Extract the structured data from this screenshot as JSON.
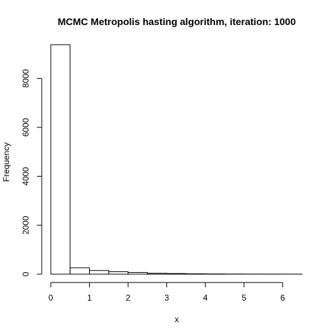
{
  "chart_data": {
    "type": "bar",
    "title": "MCMC Metropolis hasting algorithm, iteration: 1000",
    "xlabel": "x",
    "ylabel": "Frequency",
    "xlim": [
      0,
      6.5
    ],
    "ylim": [
      0,
      9500
    ],
    "x_ticks": [
      0,
      1,
      2,
      3,
      4,
      5,
      6
    ],
    "y_ticks": [
      0,
      2000,
      4000,
      6000,
      8000
    ],
    "bin_width": 0.5,
    "bins": [
      {
        "x0": 0.0,
        "x1": 0.5,
        "value": 9380
      },
      {
        "x0": 0.5,
        "x1": 1.0,
        "value": 260
      },
      {
        "x0": 1.0,
        "x1": 1.5,
        "value": 150
      },
      {
        "x0": 1.5,
        "x1": 2.0,
        "value": 100
      },
      {
        "x0": 2.0,
        "x1": 2.5,
        "value": 70
      },
      {
        "x0": 2.5,
        "x1": 3.0,
        "value": 35
      },
      {
        "x0": 3.0,
        "x1": 3.5,
        "value": 25
      },
      {
        "x0": 3.5,
        "x1": 4.0,
        "value": 15
      },
      {
        "x0": 4.0,
        "x1": 4.5,
        "value": 10
      },
      {
        "x0": 4.5,
        "x1": 5.0,
        "value": 6
      },
      {
        "x0": 5.0,
        "x1": 5.5,
        "value": 4
      },
      {
        "x0": 5.5,
        "x1": 6.0,
        "value": 3
      },
      {
        "x0": 6.0,
        "x1": 6.5,
        "value": 2
      }
    ],
    "grid": false,
    "colors": {
      "bar_fill": "#ffffff",
      "bar_stroke": "#000000"
    }
  }
}
